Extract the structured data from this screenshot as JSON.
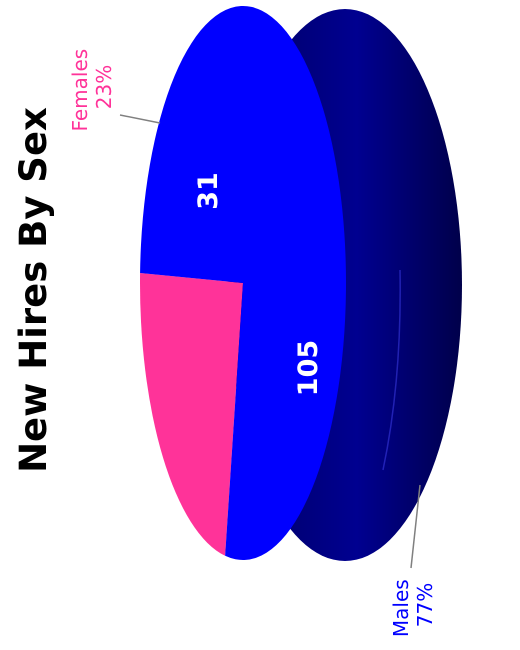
{
  "chart_data": {
    "type": "pie",
    "title": "New Hires By Sex",
    "slices": [
      {
        "name": "Females",
        "value": 31,
        "percent": "23%",
        "color": "#ff3399"
      },
      {
        "name": "Males",
        "value": 105,
        "percent": "77%",
        "color": "#0000ff"
      }
    ],
    "rim_color": "#000080",
    "style": "3D pie, rotated 90° counter-clockwise"
  }
}
